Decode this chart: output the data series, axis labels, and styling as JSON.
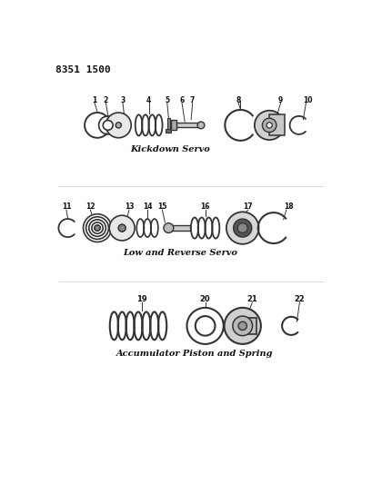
{
  "title_code": "8351 1500",
  "background_color": "#ffffff",
  "line_color": "#333333",
  "text_color": "#111111",
  "section1_label": "Kickdown Servo",
  "section2_label": "Low and Reverse Servo",
  "section3_label": "Accumulator Piston and Spring",
  "fig_width": 4.1,
  "fig_height": 5.33,
  "dpi": 100
}
